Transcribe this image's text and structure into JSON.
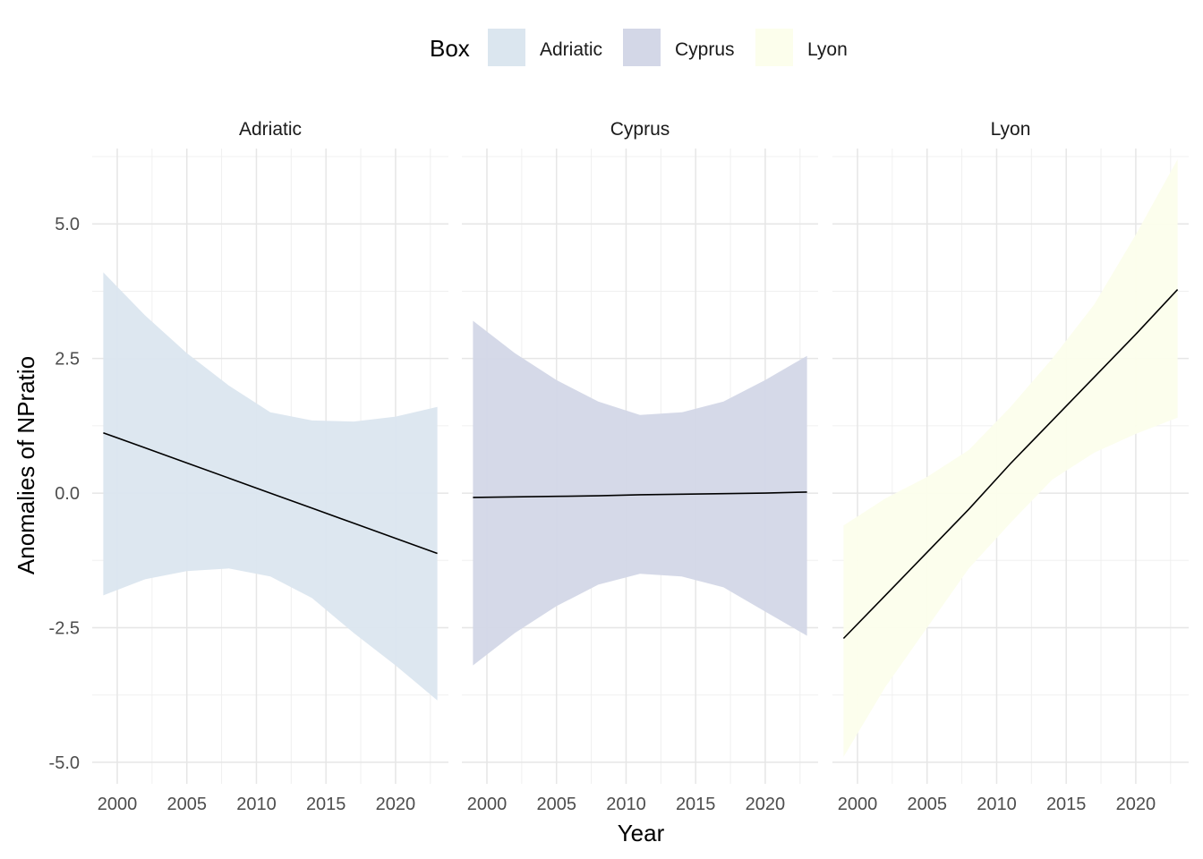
{
  "legend": {
    "title": "Box",
    "items": [
      {
        "label": "Adriatic",
        "color": "#dbe6ef"
      },
      {
        "label": "Cyprus",
        "color": "#d3d7e7"
      },
      {
        "label": "Lyon",
        "color": "#fcfeec"
      }
    ]
  },
  "chart_data": {
    "type": "line",
    "xlabel": "Year",
    "ylabel": "Anomalies of NPratio",
    "xlim": [
      1998.2,
      2023.8
    ],
    "ylim": [
      -5.4,
      6.4
    ],
    "x_ticks": [
      2000,
      2005,
      2010,
      2015,
      2020
    ],
    "y_ticks": [
      -5.0,
      -2.5,
      0.0,
      2.5,
      5.0
    ],
    "y_tick_labels": [
      "-5.0",
      "-2.5",
      "0.0",
      "2.5",
      "5.0"
    ],
    "grid": true,
    "legend_position": "top",
    "line_color": "#000000",
    "panels": [
      {
        "name": "Adriatic",
        "fill": "#dbe6ef",
        "x": [
          1999,
          2002,
          2005,
          2008,
          2011,
          2014,
          2017,
          2020,
          2023
        ],
        "fit": [
          1.12,
          0.84,
          0.56,
          0.28,
          0.0,
          -0.28,
          -0.56,
          -0.84,
          -1.12
        ],
        "upper": [
          4.1,
          3.3,
          2.6,
          2.0,
          1.5,
          1.35,
          1.33,
          1.42,
          1.6
        ],
        "lower": [
          -1.9,
          -1.6,
          -1.45,
          -1.4,
          -1.55,
          -1.95,
          -2.6,
          -3.2,
          -3.85
        ]
      },
      {
        "name": "Cyprus",
        "fill": "#d3d7e7",
        "x": [
          1999,
          2002,
          2005,
          2008,
          2011,
          2014,
          2017,
          2020,
          2023
        ],
        "fit": [
          -0.08,
          -0.07,
          -0.06,
          -0.05,
          -0.03,
          -0.02,
          -0.01,
          0.0,
          0.02
        ],
        "upper": [
          3.2,
          2.6,
          2.1,
          1.7,
          1.45,
          1.5,
          1.7,
          2.1,
          2.55
        ],
        "lower": [
          -3.2,
          -2.6,
          -2.1,
          -1.7,
          -1.5,
          -1.55,
          -1.75,
          -2.2,
          -2.65
        ]
      },
      {
        "name": "Lyon",
        "fill": "#fcfeec",
        "x": [
          1999,
          2002,
          2005,
          2008,
          2011,
          2014,
          2017,
          2020,
          2023
        ],
        "fit": [
          -2.7,
          -1.9,
          -1.1,
          -0.3,
          0.55,
          1.35,
          2.15,
          2.95,
          3.78
        ],
        "upper": [
          -0.6,
          -0.1,
          0.3,
          0.8,
          1.6,
          2.5,
          3.5,
          4.8,
          6.2
        ],
        "lower": [
          -4.9,
          -3.6,
          -2.5,
          -1.4,
          -0.55,
          0.25,
          0.75,
          1.1,
          1.4
        ]
      }
    ]
  }
}
